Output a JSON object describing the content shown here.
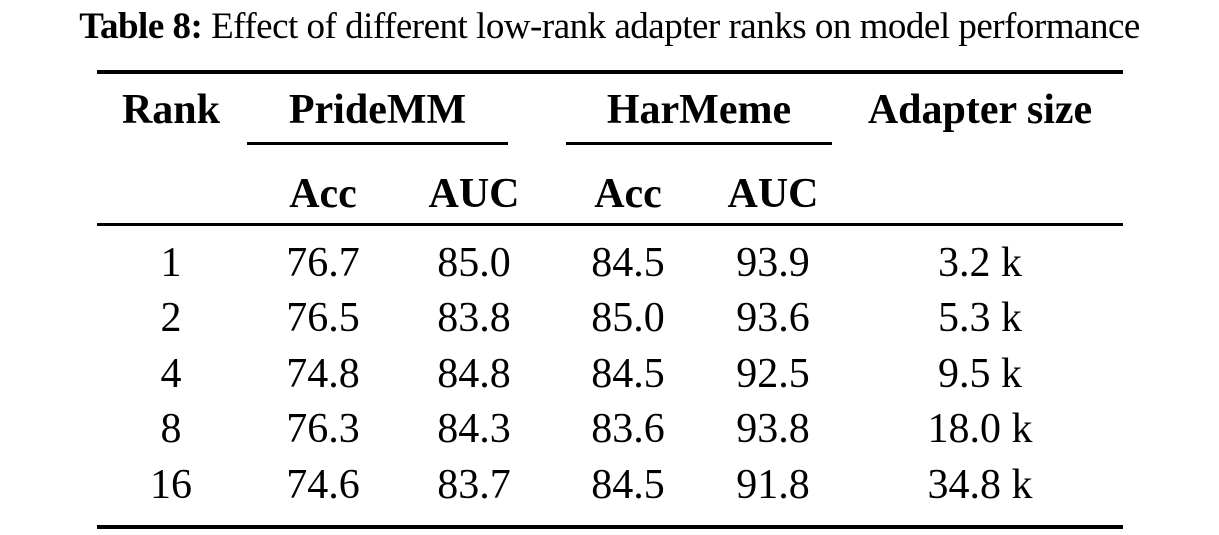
{
  "caption": {
    "label": "Table 8:",
    "text": "Effect of different low-rank adapter ranks on model performance"
  },
  "table": {
    "column_groups": {
      "rank": "Rank",
      "pridemm": "PrideMM",
      "harmeme": "HarMeme",
      "adapter_size": "Adapter size"
    },
    "subheaders": [
      "Acc",
      "AUC",
      "Acc",
      "AUC"
    ],
    "rows": [
      [
        "1",
        "76.7",
        "85.0",
        "84.5",
        "93.9",
        "3.2 k"
      ],
      [
        "2",
        "76.5",
        "83.8",
        "85.0",
        "93.6",
        "5.3 k"
      ],
      [
        "4",
        "74.8",
        "84.8",
        "84.5",
        "92.5",
        "9.5 k"
      ],
      [
        "8",
        "76.3",
        "84.3",
        "83.6",
        "93.8",
        "18.0 k"
      ],
      [
        "16",
        "74.6",
        "83.7",
        "84.5",
        "91.8",
        "34.8 k"
      ]
    ]
  },
  "chart_data": {
    "type": "table",
    "title": "Table 8: Effect of different low-rank adapter ranks on model performance",
    "columns": [
      "Rank",
      "PrideMM Acc",
      "PrideMM AUC",
      "HarMeme Acc",
      "HarMeme AUC",
      "Adapter size"
    ],
    "rows": [
      [
        1,
        76.7,
        85.0,
        84.5,
        93.9,
        "3.2 k"
      ],
      [
        2,
        76.5,
        83.8,
        85.0,
        93.6,
        "5.3 k"
      ],
      [
        4,
        74.8,
        84.8,
        84.5,
        92.5,
        "9.5 k"
      ],
      [
        8,
        76.3,
        84.3,
        83.6,
        93.8,
        "18.0 k"
      ],
      [
        16,
        74.6,
        83.7,
        84.5,
        91.8,
        "34.8 k"
      ]
    ]
  },
  "colors": {
    "text": "#000000",
    "rule": "#000000",
    "background": "#ffffff"
  }
}
